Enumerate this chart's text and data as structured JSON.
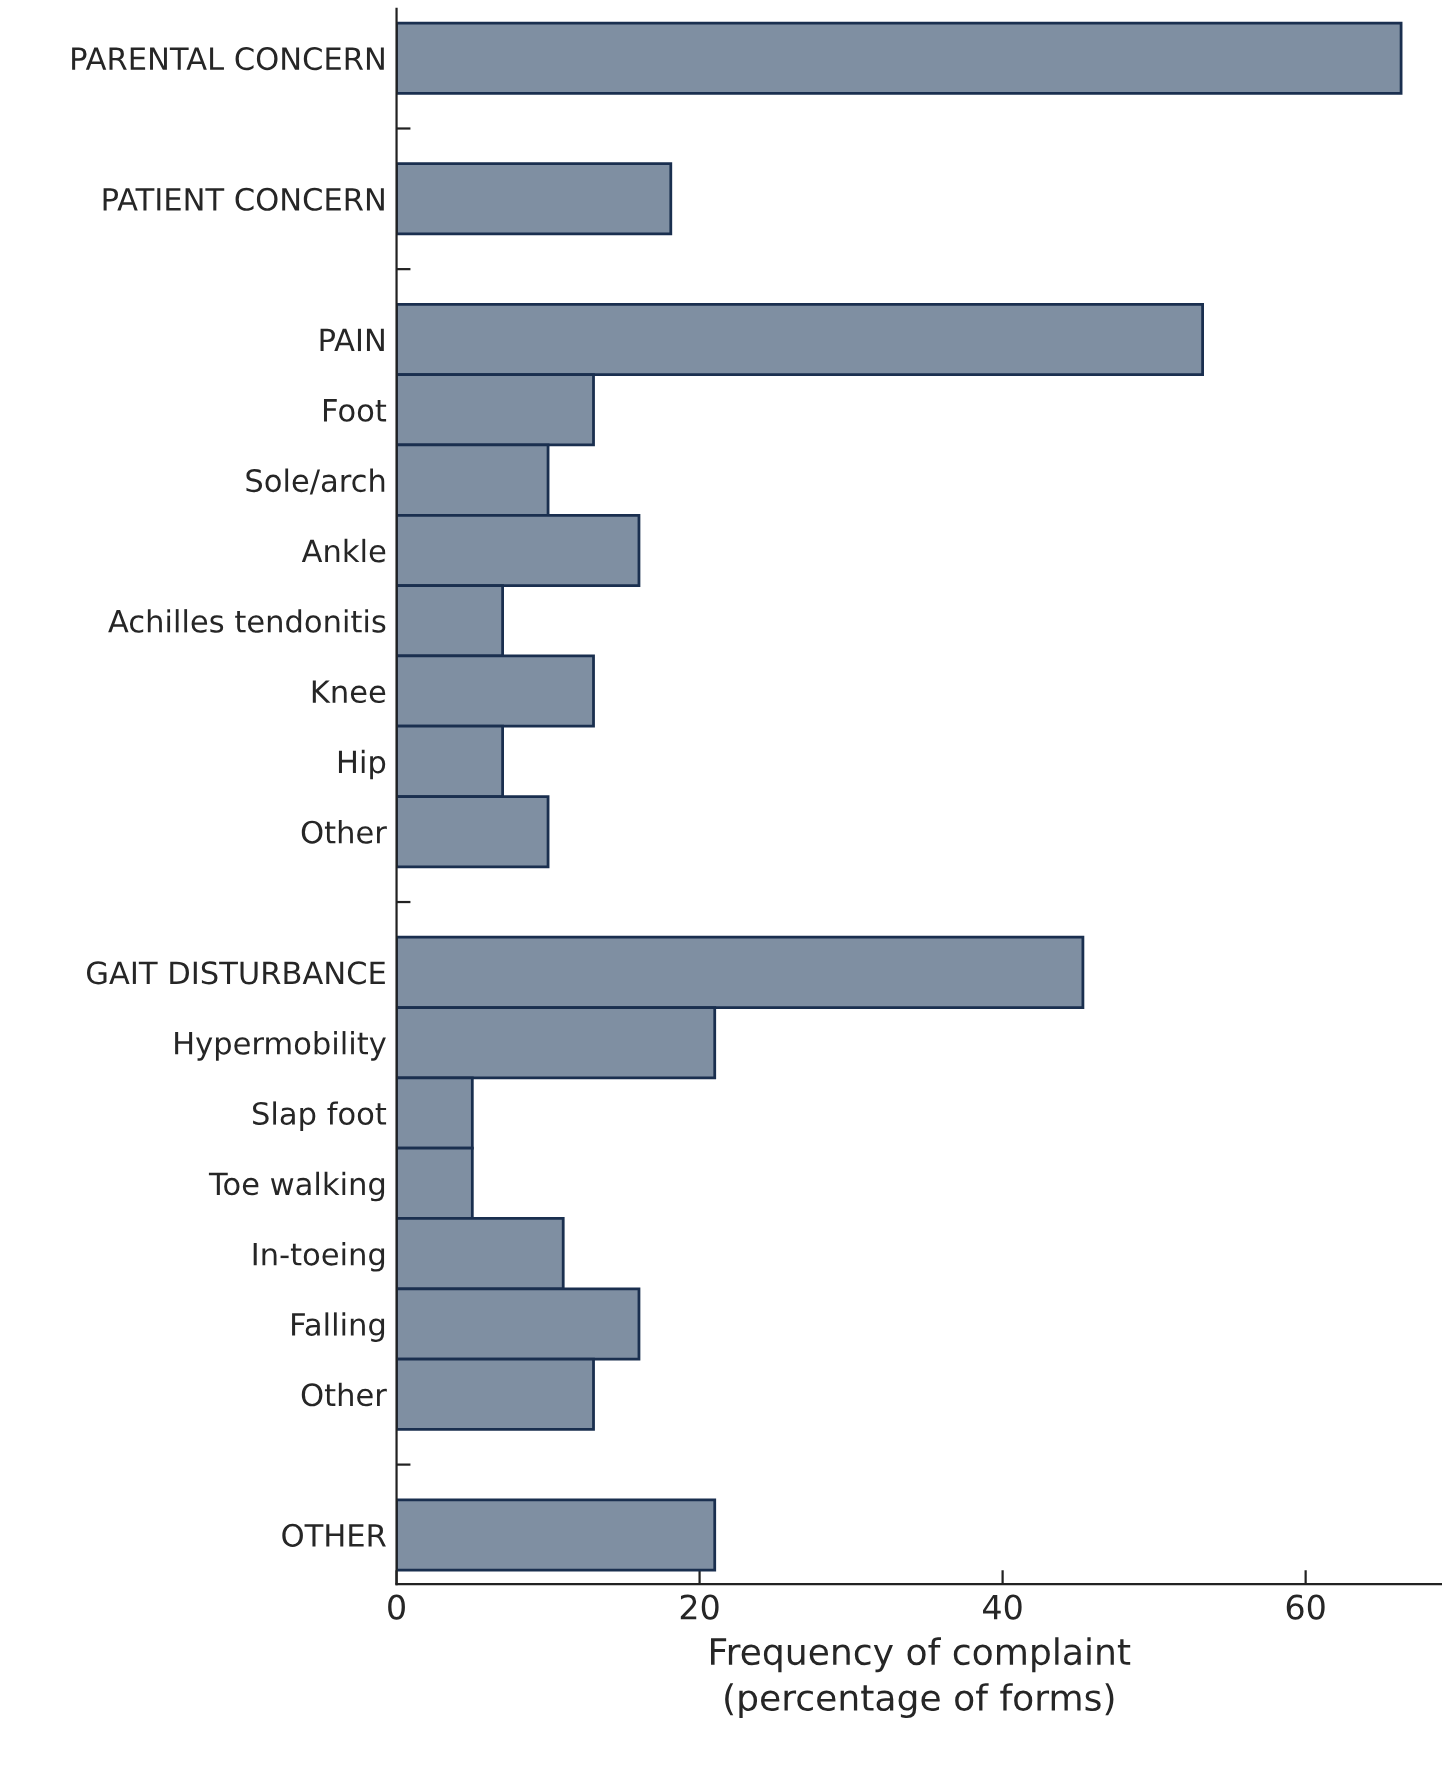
{
  "chart_data": {
    "type": "bar",
    "orientation": "horizontal",
    "xlabel": "Frequency of complaint\n(percentage of forms)",
    "categories": [
      "PARENTAL CONCERN",
      null,
      "PATIENT CONCERN",
      null,
      "PAIN",
      "Foot",
      "Sole/arch",
      "Ankle",
      "Achilles tendonitis",
      "Knee",
      "Hip",
      "Other",
      null,
      "GAIT DISTURBANCE",
      "Hypermobility",
      "Slap foot",
      "Toe walking",
      "In-toeing",
      "Falling",
      "Other",
      null,
      "OTHER"
    ],
    "values": [
      66.3,
      null,
      18.1,
      null,
      53.2,
      13,
      10,
      16,
      7,
      13,
      7,
      10,
      null,
      45.3,
      21,
      5,
      5,
      11,
      16,
      13,
      null,
      21
    ],
    "color": "#7f8fa2",
    "xlim": [
      0,
      69
    ],
    "xticks": [
      0,
      20,
      40,
      60
    ],
    "grid": false,
    "legend": false
  }
}
